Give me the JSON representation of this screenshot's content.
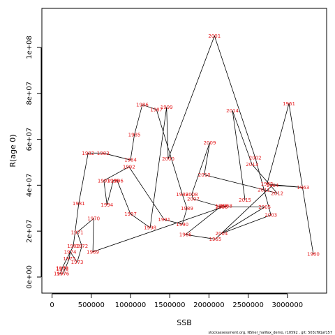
{
  "chart_data": {
    "type": "scatter",
    "xlabel": "SSB",
    "ylabel": "R(age 0)",
    "xlim": [
      -130000,
      3500000
    ],
    "ylim": [
      -7000000,
      117000000
    ],
    "x_ticks": [
      0,
      500000,
      1000000,
      1500000,
      2000000,
      2500000,
      3000000
    ],
    "x_tick_labels": [
      "0",
      "500000",
      "1000000",
      "1500000",
      "2000000",
      "2500000",
      "3000000"
    ],
    "y_ticks": [
      0,
      20000000,
      40000000,
      60000000,
      80000000,
      100000000
    ],
    "y_tick_labels": [
      "0e+00",
      "2e+07",
      "4e+07",
      "6e+07",
      "8e+07",
      "1e+08"
    ],
    "line_color": "#000000",
    "label_color": "#e41a1c",
    "points": [
      {
        "year": "1960",
        "x": 3330000,
        "y": 10000000
      },
      {
        "year": "1961",
        "x": 3020000,
        "y": 75500000
      },
      {
        "year": "1962",
        "x": 2740000,
        "y": 40500000
      },
      {
        "year": "1963",
        "x": 3200000,
        "y": 39000000
      },
      {
        "year": "1964",
        "x": 2810000,
        "y": 40000000
      },
      {
        "year": "1965",
        "x": 2080000,
        "y": 16500000
      },
      {
        "year": "1966",
        "x": 1700000,
        "y": 18500000
      },
      {
        "year": "1967",
        "x": 2160000,
        "y": 31000000
      },
      {
        "year": "1968",
        "x": 2220000,
        "y": 31000000
      },
      {
        "year": "1969",
        "x": 520000,
        "y": 11000000
      },
      {
        "year": "1970",
        "x": 530000,
        "y": 25500000
      },
      {
        "year": "1971",
        "x": 320000,
        "y": 19500000
      },
      {
        "year": "1972",
        "x": 380000,
        "y": 13500000
      },
      {
        "year": "1973",
        "x": 320000,
        "y": 6500000
      },
      {
        "year": "1974",
        "x": 230000,
        "y": 11000000
      },
      {
        "year": "1975",
        "x": 220000,
        "y": 8000000
      },
      {
        "year": "1976",
        "x": 140000,
        "y": 1500000
      },
      {
        "year": "1977",
        "x": 100000,
        "y": 1500000
      },
      {
        "year": "1978",
        "x": 130000,
        "y": 3500000
      },
      {
        "year": "1979",
        "x": 130000,
        "y": 4000000
      },
      {
        "year": "1980",
        "x": 270000,
        "y": 13500000
      },
      {
        "year": "1981",
        "x": 340000,
        "y": 32000000
      },
      {
        "year": "1982",
        "x": 460000,
        "y": 54000000
      },
      {
        "year": "1983",
        "x": 650000,
        "y": 54000000
      },
      {
        "year": "1984",
        "x": 1000000,
        "y": 51000000
      },
      {
        "year": "1985",
        "x": 1050000,
        "y": 62000000
      },
      {
        "year": "1986",
        "x": 1150000,
        "y": 75000000
      },
      {
        "year": "1987",
        "x": 1330000,
        "y": 73000000
      },
      {
        "year": "1988",
        "x": 1660000,
        "y": 36000000
      },
      {
        "year": "1989",
        "x": 1720000,
        "y": 30000000
      },
      {
        "year": "1990",
        "x": 1660000,
        "y": 23000000
      },
      {
        "year": "1991",
        "x": 1430000,
        "y": 25000000
      },
      {
        "year": "1992",
        "x": 980000,
        "y": 48000000
      },
      {
        "year": "1993",
        "x": 660000,
        "y": 42000000
      },
      {
        "year": "1994",
        "x": 700000,
        "y": 31500000
      },
      {
        "year": "1995",
        "x": 780000,
        "y": 42000000
      },
      {
        "year": "1996",
        "x": 830000,
        "y": 42000000
      },
      {
        "year": "1997",
        "x": 1000000,
        "y": 27500000
      },
      {
        "year": "1998",
        "x": 1250000,
        "y": 21500000
      },
      {
        "year": "1999",
        "x": 1460000,
        "y": 74000000
      },
      {
        "year": "2000",
        "x": 1480000,
        "y": 51500000
      },
      {
        "year": "2001",
        "x": 2070000,
        "y": 105000000
      },
      {
        "year": "2002",
        "x": 2590000,
        "y": 52000000
      },
      {
        "year": "2003",
        "x": 2790000,
        "y": 27000000
      },
      {
        "year": "2004",
        "x": 2160000,
        "y": 19000000
      },
      {
        "year": "2005",
        "x": 2710000,
        "y": 30500000
      },
      {
        "year": "2006",
        "x": 2160000,
        "y": 30500000
      },
      {
        "year": "2007",
        "x": 1800000,
        "y": 34000000
      },
      {
        "year": "2008",
        "x": 1780000,
        "y": 36000000
      },
      {
        "year": "2009",
        "x": 2010000,
        "y": 58500000
      },
      {
        "year": "2010",
        "x": 1940000,
        "y": 44500000
      },
      {
        "year": "2011",
        "x": 2700000,
        "y": 38000000
      },
      {
        "year": "2012",
        "x": 2870000,
        "y": 36500000
      },
      {
        "year": "2013",
        "x": 2550000,
        "y": 49000000
      },
      {
        "year": "2014",
        "x": 2300000,
        "y": 72500000
      },
      {
        "year": "2015",
        "x": 2460000,
        "y": 33500000
      }
    ]
  },
  "footer": "stockassessment.org, NSher_halifax_demo, r10592 , git: 503cf91af157"
}
